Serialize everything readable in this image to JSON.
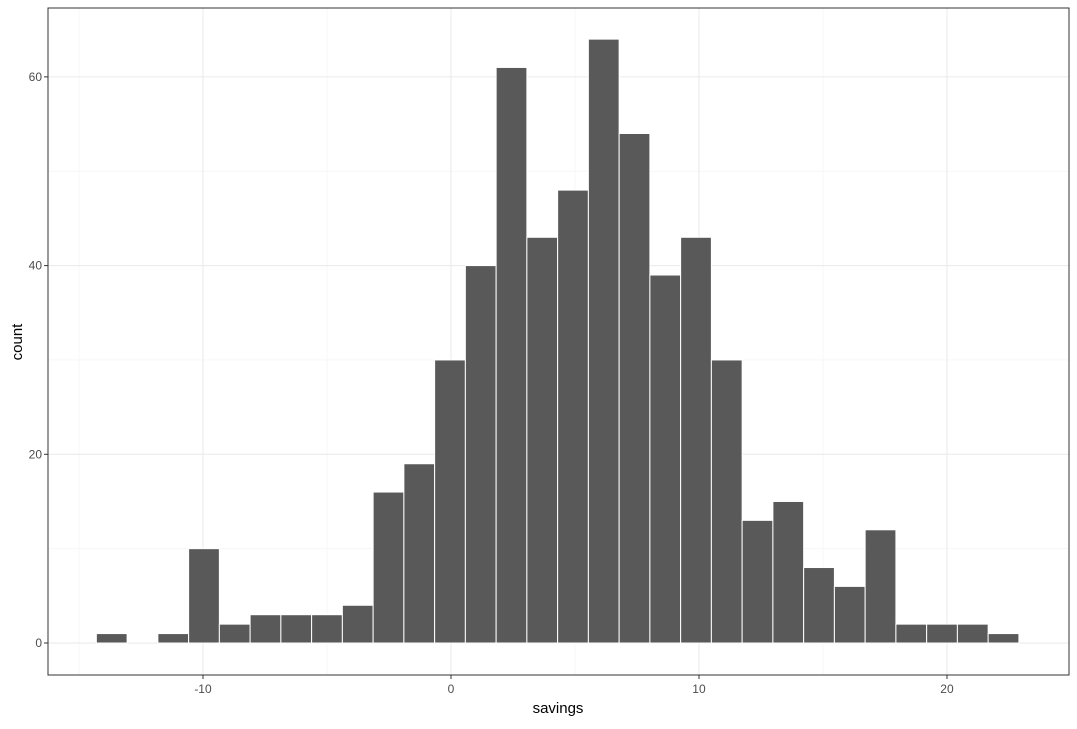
{
  "chart_data": {
    "type": "histogram",
    "x_label": "savings",
    "y_label": "count",
    "bins": [
      -14.3,
      -13.06,
      -11.82,
      -10.58,
      -9.34,
      -8.1,
      -6.86,
      -5.62,
      -4.38,
      -3.14,
      -1.9,
      -0.66,
      0.58,
      1.82,
      3.06,
      4.3,
      5.54,
      6.78,
      8.02,
      9.26,
      10.5,
      11.74,
      12.98,
      14.22,
      15.46,
      16.7,
      17.94,
      19.18,
      20.42,
      21.66,
      22.9
    ],
    "values": [
      1,
      0,
      1,
      10,
      2,
      3,
      3,
      3,
      4,
      16,
      19,
      30,
      40,
      61,
      43,
      48,
      64,
      54,
      39,
      43,
      30,
      13,
      15,
      8,
      6,
      12,
      2,
      2,
      2,
      1
    ],
    "color": "#595959",
    "edge_color": "#ffffff",
    "xlim": [
      -16.25,
      24.92
    ],
    "xticks": [
      -10,
      0,
      10,
      20
    ],
    "ylim": [
      -3.39,
      67.3
    ],
    "yticks": [
      0,
      20,
      40,
      60
    ],
    "grid": true,
    "minor_grid": true
  }
}
